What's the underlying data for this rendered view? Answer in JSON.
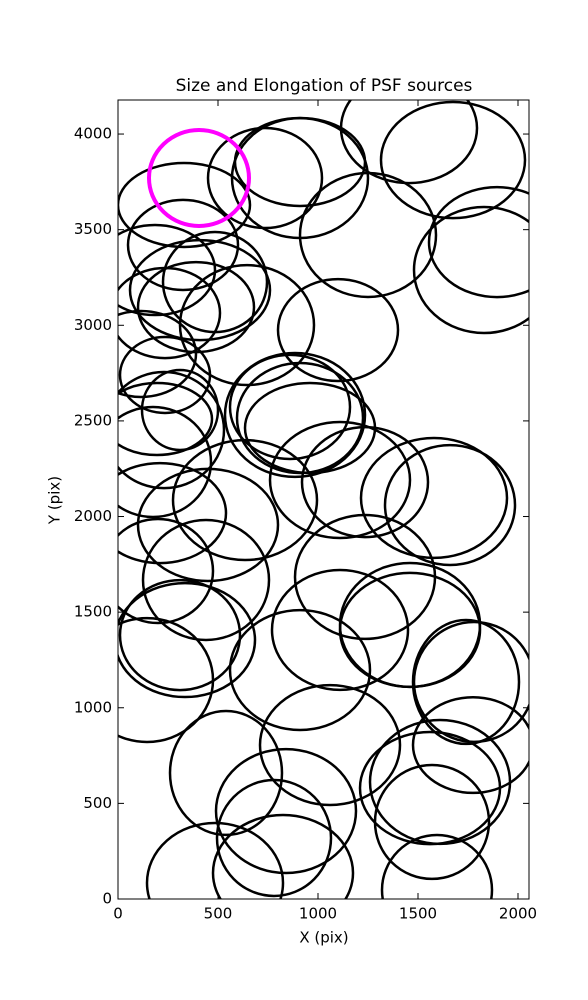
{
  "chart_data": {
    "type": "ellipse",
    "title": "Size and Elongation of PSF sources",
    "xlabel": "X (pix)",
    "ylabel": "Y (pix)",
    "xlim": [
      0,
      2055
    ],
    "ylim": [
      0,
      4178
    ],
    "xticks": [
      0,
      500,
      1000,
      1500,
      2000
    ],
    "yticks": [
      0,
      500,
      1000,
      1500,
      2000,
      2500,
      3000,
      3500,
      4000
    ],
    "series": [
      {
        "color": "#000000",
        "linewidth": 2.5,
        "x": [
          330,
          735,
          910,
          910,
          1250,
          1455,
          1675,
          1895,
          1830,
          1100,
          185,
          325,
          410,
          485,
          390,
          235,
          645,
          115,
          235,
          195,
          230,
          310,
          885,
          910,
          860,
          960,
          175,
          210,
          450,
          635,
          1110,
          1235,
          1580,
          1660,
          1235,
          1460,
          1460,
          1110,
          910,
          200,
          440,
          310,
          335,
          145,
          1740,
          1780,
          1060,
          540,
          840,
          780,
          1560,
          1610,
          1570,
          485,
          825,
          1595,
          1775
        ],
        "y": [
          3629,
          3770,
          3854,
          3770,
          3472,
          4031,
          3864,
          3435,
          3289,
          2975,
          3289,
          3420,
          3184,
          3226,
          3095,
          3064,
          3001,
          2850,
          2740,
          2510,
          2452,
          2557,
          2531,
          2515,
          2573,
          2463,
          2285,
          2018,
          1956,
          2086,
          2191,
          2180,
          2097,
          2060,
          1684,
          1407,
          1433,
          1407,
          1197,
          1715,
          1668,
          1380,
          1354,
          1145,
          1135,
          1135,
          805,
          659,
          460,
          319,
          580,
          612,
          403,
          84,
          136,
          47,
          805
        ],
        "width": [
          660,
          570,
          650,
          680,
          680,
          680,
          720,
          680,
          700,
          600,
          600,
          550,
          700,
          520,
          580,
          550,
          670,
          550,
          450,
          550,
          600,
          380,
          700,
          630,
          600,
          650,
          580,
          660,
          700,
          720,
          700,
          630,
          730,
          650,
          700,
          700,
          700,
          680,
          700,
          550,
          630,
          600,
          700,
          660,
          530,
          600,
          700,
          560,
          700,
          570,
          700,
          700,
          570,
          680,
          700,
          550,
          600
        ],
        "height": [
          439,
          523,
          460,
          627,
          648,
          575,
          607,
          575,
          659,
          533,
          471,
          471,
          523,
          523,
          471,
          471,
          627,
          450,
          397,
          376,
          607,
          418,
          648,
          575,
          544,
          471,
          575,
          523,
          586,
          627,
          607,
          575,
          627,
          627,
          648,
          596,
          648,
          627,
          627,
          544,
          627,
          575,
          596,
          648,
          648,
          627,
          627,
          648,
          648,
          606,
          586,
          648,
          596,
          627,
          606,
          575,
          500
        ]
      },
      {
        "color": "#ff00ff",
        "linewidth": 4,
        "x": [
          405
        ],
        "y": [
          3770
        ],
        "width": [
          500
        ],
        "height": [
          502
        ]
      }
    ]
  }
}
